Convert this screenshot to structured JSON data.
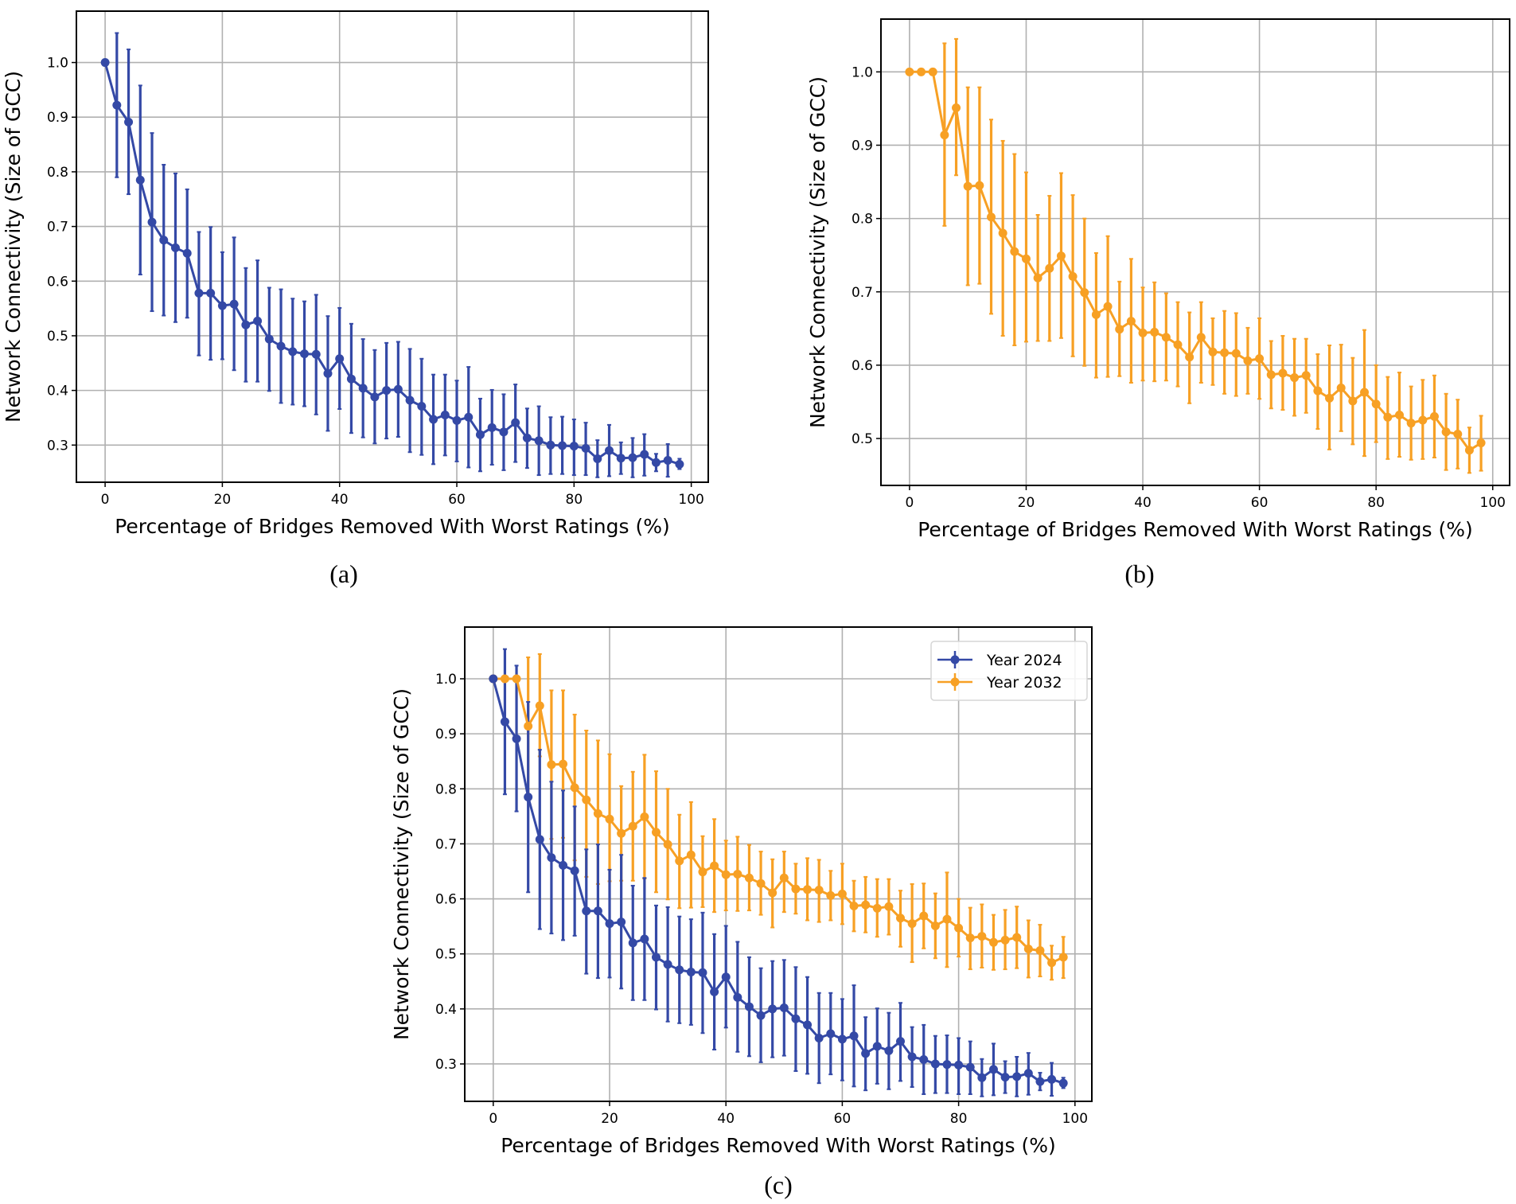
{
  "figure": {
    "captions": [
      "(a)",
      "(b)",
      "(c)"
    ]
  },
  "colors": {
    "year_2024": "#3449a6",
    "year_2032": "#f7a024",
    "grid": "#b0b0b0",
    "axis": "#000000"
  },
  "chart_data": [
    {
      "panel": "(a)",
      "type": "line",
      "title": "",
      "xlabel": "Percentage of Bridges Removed With Worst Ratings (%)",
      "ylabel": "Network Connectivity (Size of GCC)",
      "xlim": [
        -4.9,
        102.9
      ],
      "ylim": [
        0.232,
        1.094
      ],
      "xticks": [
        "0",
        "20",
        "40",
        "60",
        "80",
        "100"
      ],
      "yticks": [
        "0.3",
        "0.4",
        "0.5",
        "0.6",
        "0.7",
        "0.8",
        "0.9",
        "1.0"
      ],
      "grid": true,
      "legend": null,
      "series": [
        {
          "name": "Year 2024",
          "color_key": "year_2024",
          "x": [
            0,
            2,
            4,
            6,
            8,
            10,
            12,
            14,
            16,
            18,
            20,
            22,
            24,
            26,
            28,
            30,
            32,
            34,
            36,
            38,
            40,
            42,
            44,
            46,
            48,
            50,
            52,
            54,
            56,
            58,
            60,
            62,
            64,
            66,
            68,
            70,
            72,
            74,
            76,
            78,
            80,
            82,
            84,
            86,
            88,
            90,
            92,
            94,
            96,
            98
          ],
          "y": [
            1.0,
            0.922,
            0.891,
            0.785,
            0.708,
            0.675,
            0.661,
            0.651,
            0.578,
            0.578,
            0.555,
            0.558,
            0.52,
            0.527,
            0.494,
            0.481,
            0.471,
            0.467,
            0.466,
            0.431,
            0.458,
            0.421,
            0.404,
            0.388,
            0.4,
            0.402,
            0.382,
            0.371,
            0.347,
            0.355,
            0.345,
            0.351,
            0.319,
            0.332,
            0.324,
            0.341,
            0.313,
            0.308,
            0.3,
            0.299,
            0.298,
            0.294,
            0.275,
            0.29,
            0.276,
            0.277,
            0.283,
            0.268,
            0.272,
            0.265
          ],
          "yerr_low": [
            1.0,
            0.79,
            0.759,
            0.612,
            0.545,
            0.537,
            0.525,
            0.533,
            0.464,
            0.456,
            0.457,
            0.437,
            0.416,
            0.416,
            0.399,
            0.377,
            0.374,
            0.371,
            0.356,
            0.326,
            0.366,
            0.322,
            0.314,
            0.303,
            0.312,
            0.315,
            0.287,
            0.282,
            0.265,
            0.281,
            0.27,
            0.259,
            0.252,
            0.264,
            0.254,
            0.269,
            0.258,
            0.245,
            0.247,
            0.247,
            0.245,
            0.245,
            0.241,
            0.243,
            0.247,
            0.241,
            0.244,
            0.252,
            0.242,
            0.256
          ],
          "yerr_high": [
            1.0,
            1.054,
            1.024,
            0.958,
            0.871,
            0.813,
            0.797,
            0.768,
            0.69,
            0.699,
            0.653,
            0.68,
            0.624,
            0.638,
            0.588,
            0.585,
            0.568,
            0.563,
            0.575,
            0.536,
            0.551,
            0.522,
            0.494,
            0.474,
            0.487,
            0.489,
            0.476,
            0.458,
            0.429,
            0.429,
            0.418,
            0.443,
            0.385,
            0.401,
            0.393,
            0.411,
            0.367,
            0.371,
            0.351,
            0.352,
            0.347,
            0.341,
            0.309,
            0.337,
            0.305,
            0.313,
            0.32,
            0.284,
            0.302,
            0.275
          ]
        }
      ]
    },
    {
      "panel": "(b)",
      "type": "line",
      "title": "",
      "xlabel": "Percentage of Bridges Removed With Worst Ratings (%)",
      "ylabel": "Network Connectivity (Size of GCC)",
      "xlim": [
        -4.9,
        102.9
      ],
      "ylim": [
        0.436,
        1.072
      ],
      "xticks": [
        "0",
        "20",
        "40",
        "60",
        "80",
        "100"
      ],
      "yticks": [
        "0.5",
        "0.6",
        "0.7",
        "0.8",
        "0.9",
        "1.0"
      ],
      "grid": true,
      "legend": null,
      "series": [
        {
          "name": "Year 2032",
          "color_key": "year_2032",
          "x": [
            0,
            2,
            4,
            6,
            8,
            10,
            12,
            14,
            16,
            18,
            20,
            22,
            24,
            26,
            28,
            30,
            32,
            34,
            36,
            38,
            40,
            42,
            44,
            46,
            48,
            50,
            52,
            54,
            56,
            58,
            60,
            62,
            64,
            66,
            68,
            70,
            72,
            74,
            76,
            78,
            80,
            82,
            84,
            86,
            88,
            90,
            92,
            94,
            96,
            98
          ],
          "y": [
            1.0,
            1.0,
            1.0,
            0.914,
            0.951,
            0.844,
            0.845,
            0.802,
            0.78,
            0.755,
            0.745,
            0.719,
            0.732,
            0.749,
            0.721,
            0.699,
            0.669,
            0.68,
            0.649,
            0.66,
            0.644,
            0.645,
            0.638,
            0.628,
            0.611,
            0.638,
            0.618,
            0.617,
            0.616,
            0.606,
            0.609,
            0.587,
            0.589,
            0.583,
            0.586,
            0.565,
            0.555,
            0.569,
            0.551,
            0.563,
            0.547,
            0.529,
            0.532,
            0.521,
            0.525,
            0.53,
            0.509,
            0.506,
            0.484,
            0.494
          ],
          "yerr_low": [
            1.0,
            1.0,
            1.0,
            0.79,
            0.859,
            0.709,
            0.711,
            0.67,
            0.64,
            0.627,
            0.632,
            0.633,
            0.633,
            0.637,
            0.612,
            0.599,
            0.583,
            0.584,
            0.585,
            0.576,
            0.579,
            0.578,
            0.579,
            0.571,
            0.548,
            0.576,
            0.573,
            0.561,
            0.558,
            0.561,
            0.554,
            0.541,
            0.539,
            0.531,
            0.535,
            0.513,
            0.485,
            0.51,
            0.492,
            0.476,
            0.495,
            0.472,
            0.475,
            0.471,
            0.472,
            0.474,
            0.457,
            0.459,
            0.453,
            0.456
          ],
          "yerr_high": [
            1.0,
            1.0,
            1.0,
            1.039,
            1.045,
            0.979,
            0.979,
            0.935,
            0.906,
            0.888,
            0.863,
            0.805,
            0.831,
            0.862,
            0.832,
            0.8,
            0.753,
            0.776,
            0.714,
            0.745,
            0.706,
            0.713,
            0.698,
            0.686,
            0.672,
            0.686,
            0.664,
            0.674,
            0.671,
            0.651,
            0.664,
            0.633,
            0.64,
            0.636,
            0.636,
            0.615,
            0.627,
            0.628,
            0.61,
            0.648,
            0.6,
            0.584,
            0.59,
            0.571,
            0.58,
            0.586,
            0.561,
            0.553,
            0.515,
            0.531
          ]
        }
      ]
    },
    {
      "panel": "(c)",
      "type": "line",
      "title": "",
      "xlabel": "Percentage of Bridges Removed With Worst Ratings (%)",
      "ylabel": "Network Connectivity (Size of GCC)",
      "xlim": [
        -4.9,
        102.9
      ],
      "ylim": [
        0.232,
        1.094
      ],
      "xticks": [
        "0",
        "20",
        "40",
        "60",
        "80",
        "100"
      ],
      "yticks": [
        "0.3",
        "0.4",
        "0.5",
        "0.6",
        "0.7",
        "0.8",
        "0.9",
        "1.0"
      ],
      "grid": true,
      "legend": {
        "placement": "top-right",
        "entries": [
          "Year 2024",
          "Year 2032"
        ]
      },
      "series_ref": [
        "(a):Year 2024",
        "(b):Year 2032"
      ]
    }
  ]
}
